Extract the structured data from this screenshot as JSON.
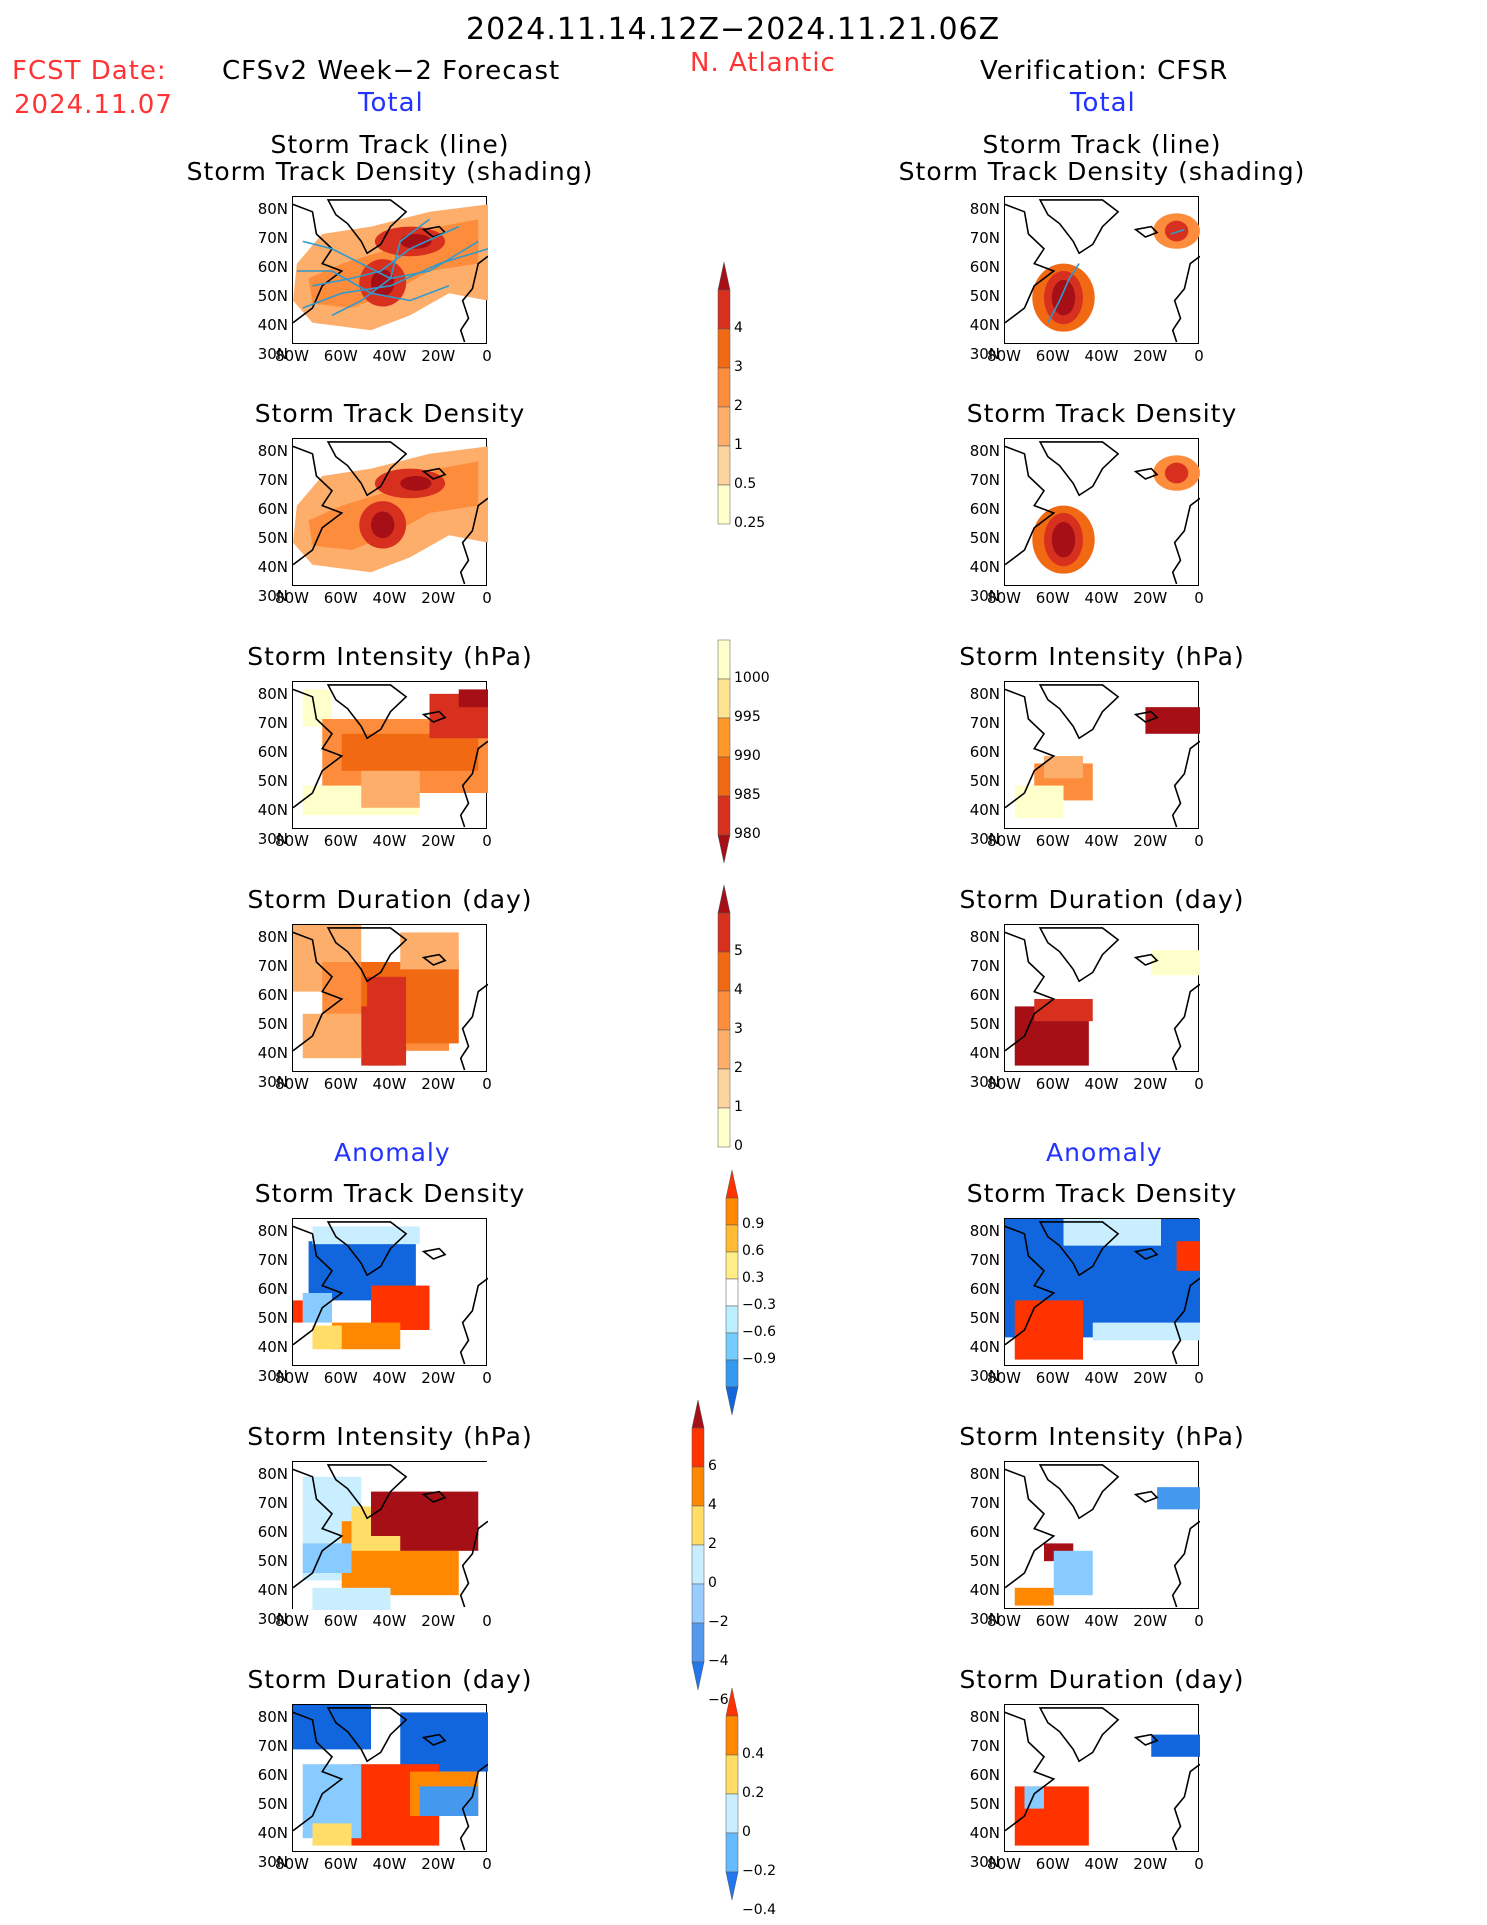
{
  "header": {
    "date_range": "2024.11.14.12Z−2024.11.21.06Z",
    "fcst_date_label": "FCST Date:",
    "fcst_date_value": "2024.11.07",
    "forecast_title": "CFSv2 Week−2 Forecast",
    "region": "N. Atlantic",
    "verification_title": "Verification: CFSR",
    "left_total": "Total",
    "right_total": "Total",
    "left_anomaly": "Anomaly",
    "right_anomaly": "Anomaly"
  },
  "axes": {
    "lat_ticks": [
      "80N",
      "70N",
      "60N",
      "50N",
      "40N",
      "30N"
    ],
    "lon_ticks": [
      "80W",
      "60W",
      "40W",
      "20W",
      "0"
    ]
  },
  "panel_titles": {
    "track": [
      "Storm Track (line)",
      "Storm Track Density (shading)"
    ],
    "density": "Storm Track Density",
    "intensity": "Storm Intensity (hPa)",
    "duration": "Storm Duration (day)"
  },
  "colorbars": {
    "density_total": {
      "labels": [
        "4",
        "3",
        "2",
        "1",
        "0.5",
        "0.25"
      ],
      "colors": [
        "#a50f15",
        "#d7301f",
        "#f16913",
        "#fd8d3c",
        "#fdae6b",
        "#fdd49e",
        "#ffffcc"
      ]
    },
    "intensity_total": {
      "labels": [
        "1000",
        "995",
        "990",
        "985",
        "980"
      ],
      "colors": [
        "#ffffcc",
        "#fee391",
        "#fe9929",
        "#f16913",
        "#d7301f",
        "#a50f15"
      ]
    },
    "duration_total": {
      "labels": [
        "5",
        "4",
        "3",
        "2",
        "1",
        "0"
      ],
      "colors": [
        "#a50f15",
        "#d7301f",
        "#f16913",
        "#fd8d3c",
        "#fdae6b",
        "#fdd49e",
        "#ffffcc"
      ]
    },
    "density_anom": {
      "labels": [
        "0.9",
        "0.6",
        "0.3",
        "−0.3",
        "−0.6",
        "−0.9"
      ],
      "colors": [
        "#ff3300",
        "#ff8800",
        "#ffbb33",
        "#ffee88",
        "#ffffff",
        "#bbeeff",
        "#77ccff",
        "#3399ee",
        "#1166dd"
      ]
    },
    "intensity_anom": {
      "labels": [
        "6",
        "4",
        "2",
        "0",
        "−2",
        "−4",
        "−6"
      ],
      "colors": [
        "#a50f15",
        "#ff3300",
        "#ff8800",
        "#ffdd66",
        "#c8eeff",
        "#99ccff",
        "#5599ee",
        "#2277ee"
      ]
    },
    "duration_anom": {
      "labels": [
        "0.4",
        "0.2",
        "0",
        "−0.2",
        "−0.4"
      ],
      "colors": [
        "#ff3300",
        "#ff8800",
        "#ffdd66",
        "#c8eeff",
        "#66bbff",
        "#2277ee"
      ]
    }
  }
}
